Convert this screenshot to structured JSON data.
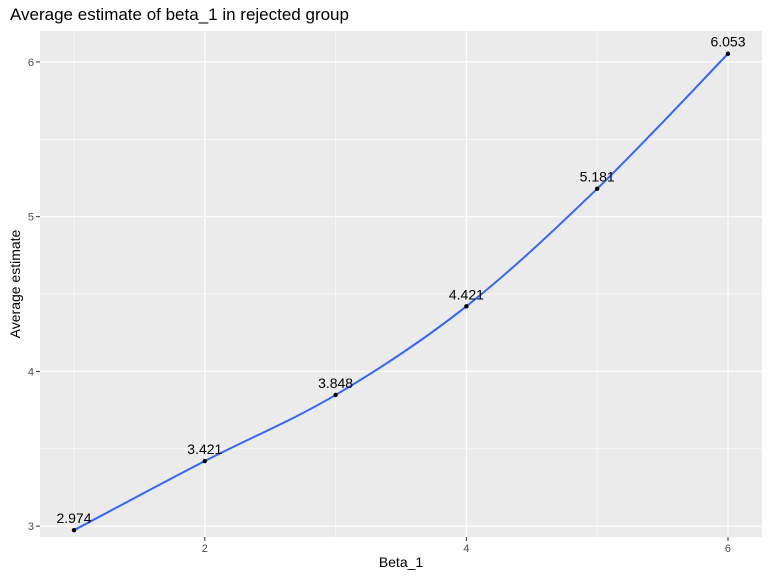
{
  "chart_data": {
    "type": "line",
    "title": "Average estimate of beta_1 in rejected group",
    "xlabel": "Beta_1",
    "ylabel": "Average estimate",
    "x": [
      1,
      2,
      3,
      4,
      5,
      6
    ],
    "series": [
      {
        "values": [
          2.974,
          3.421,
          3.848,
          4.421,
          5.181,
          6.053
        ],
        "labels": [
          "2.974",
          "3.421",
          "3.848",
          "4.421",
          "5.181",
          "6.053"
        ],
        "color": "#3366ff"
      }
    ],
    "xlim": [
      0.74,
      6.26
    ],
    "ylim": [
      2.93,
      6.2
    ],
    "xticks": [
      2,
      4,
      6
    ],
    "xtick_labels": [
      "2",
      "4",
      "6"
    ],
    "yticks": [
      3,
      4,
      5,
      6
    ],
    "ytick_labels": [
      "3",
      "4",
      "5",
      "6"
    ],
    "grid": true,
    "legend": "none",
    "panel_background": "#ebebeb",
    "grid_color": "#ffffff",
    "point_color": "#000000"
  }
}
